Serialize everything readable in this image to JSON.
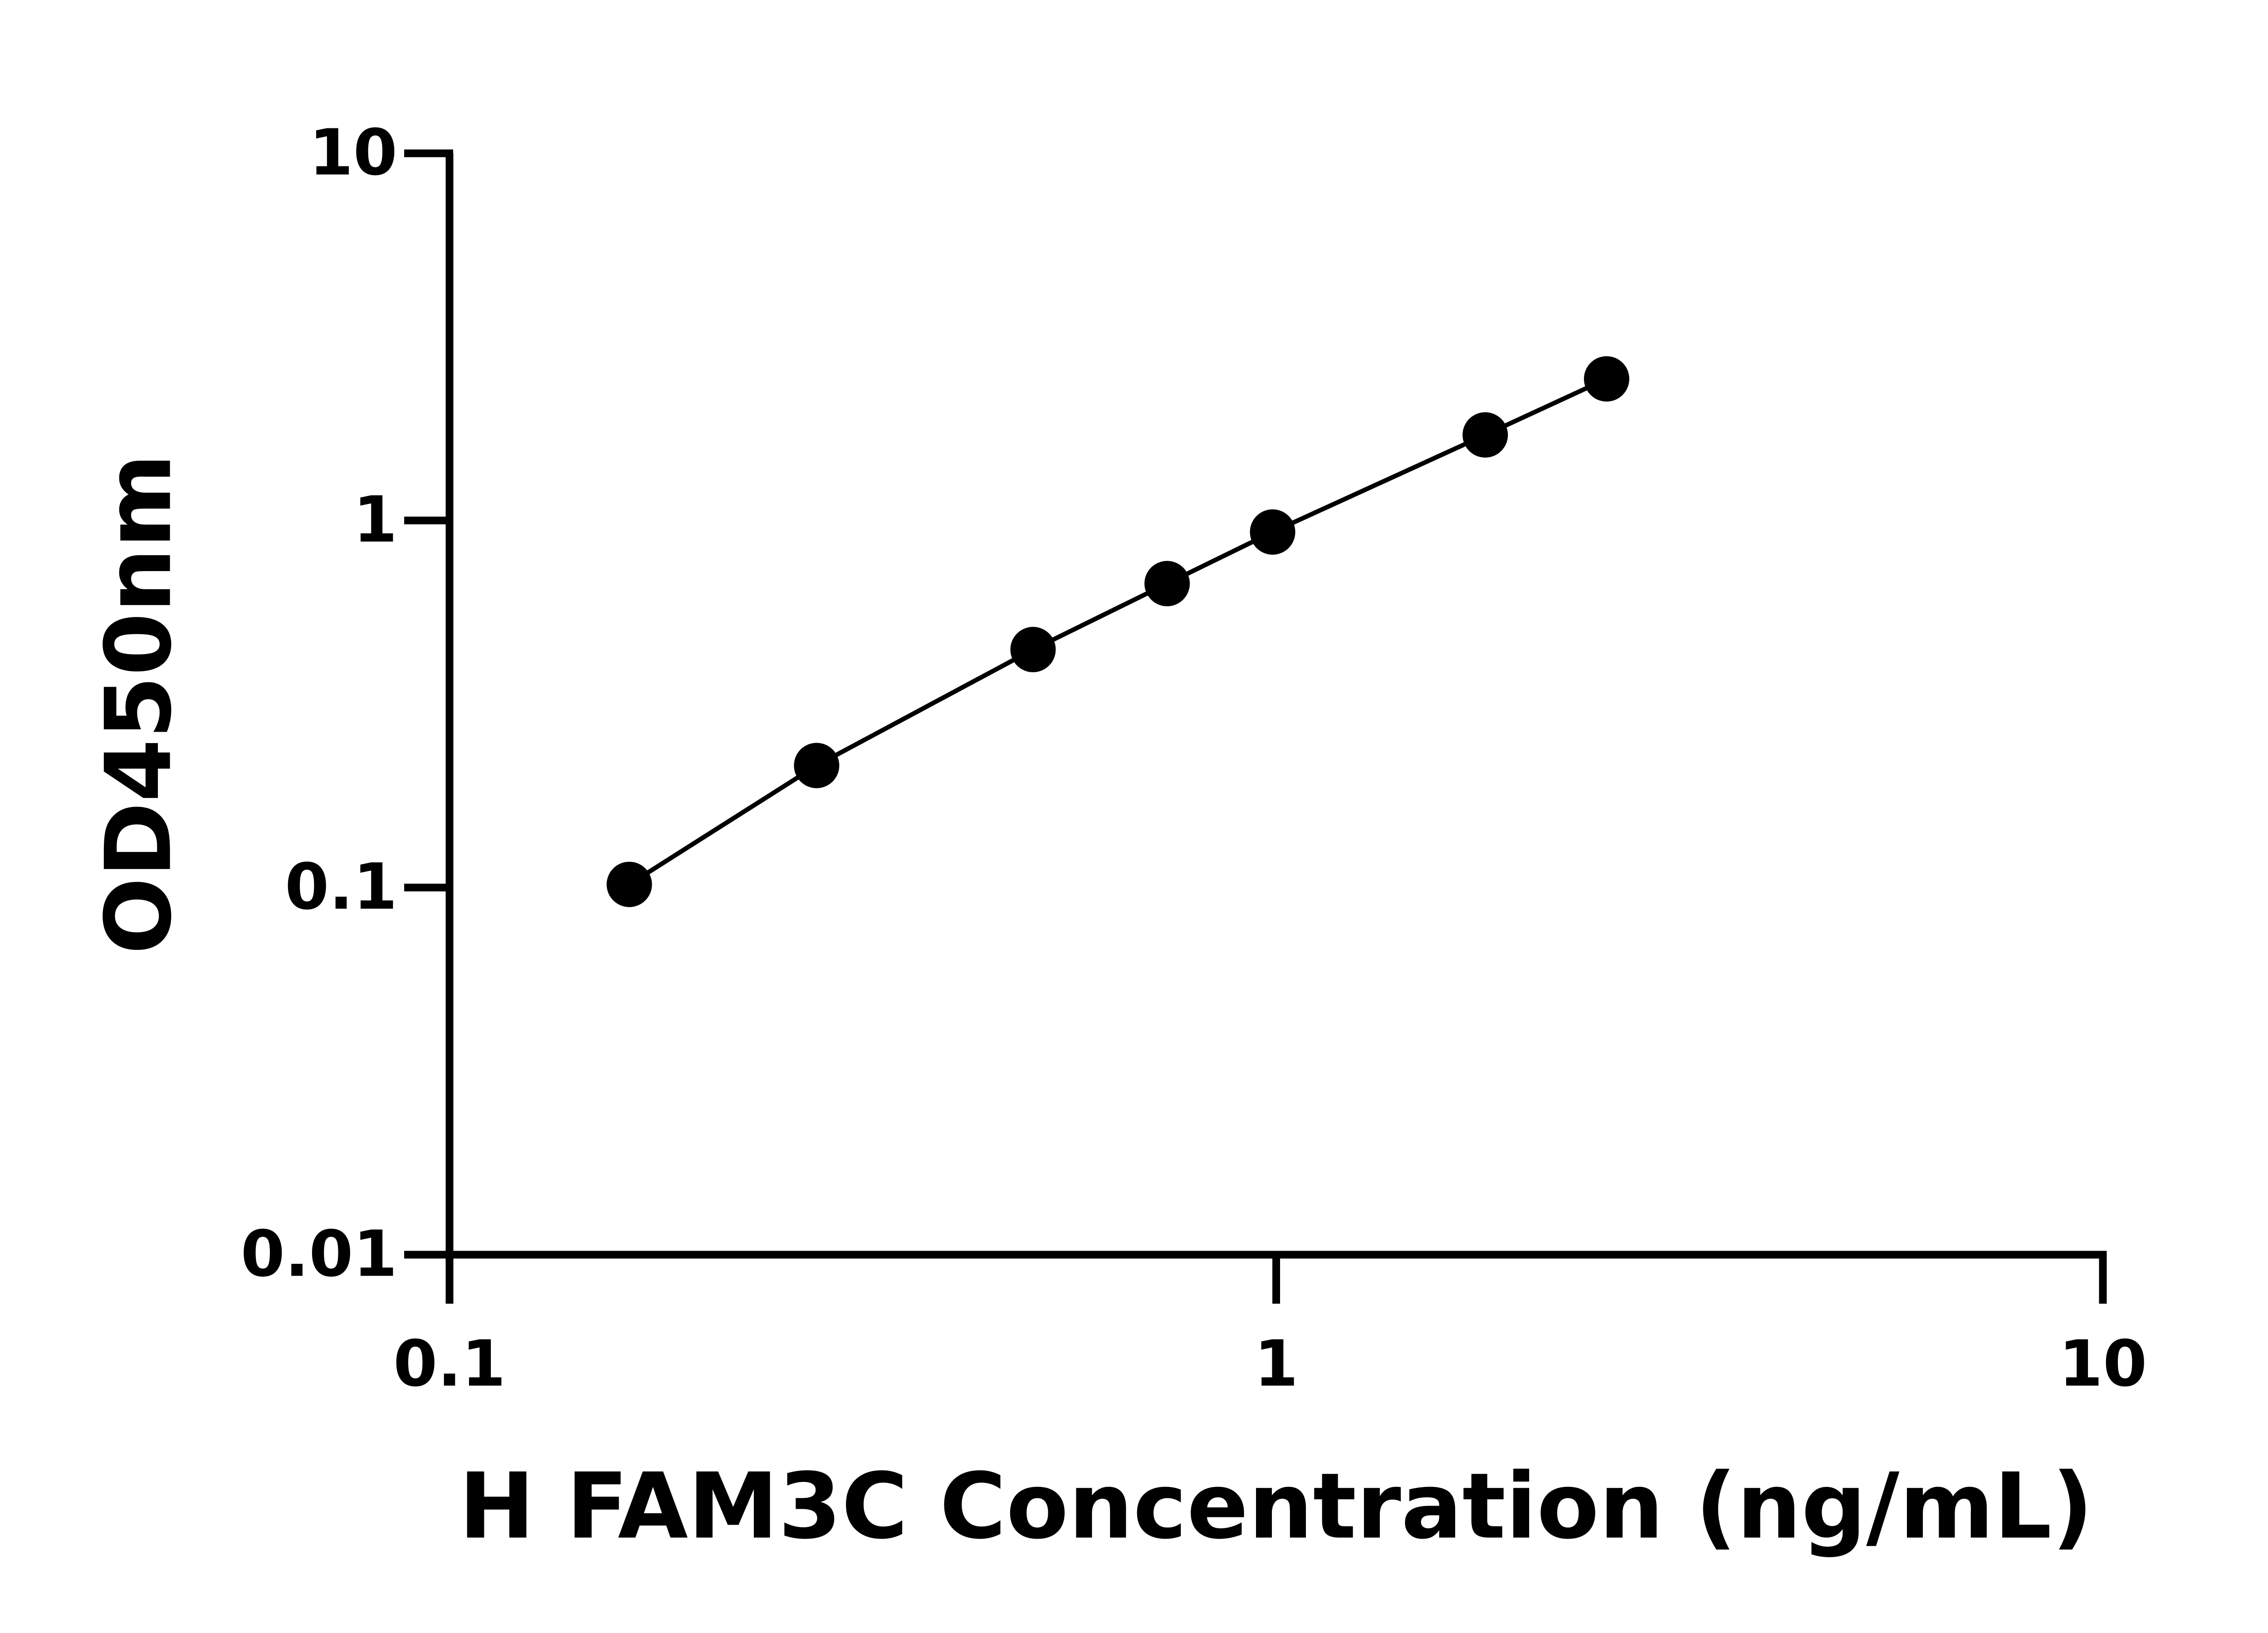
{
  "chart_data": {
    "type": "scatter",
    "line": true,
    "x_label": "H FAM3C Concentration (ng/mL)",
    "y_label": "OD450nm",
    "x": [
      0.165,
      0.278,
      0.508,
      0.738,
      0.99,
      1.79,
      2.51
    ],
    "values": [
      0.102,
      0.215,
      0.445,
      0.673,
      0.93,
      1.71,
      2.43
    ],
    "color": "#000000",
    "xscale": "log",
    "yscale": "log",
    "xlim": [
      0.1,
      10
    ],
    "ylim": [
      0.01,
      10
    ],
    "xticks": [
      0.1,
      1,
      10
    ],
    "yticks": [
      0.01,
      0.1,
      1,
      10
    ],
    "grid": false
  }
}
